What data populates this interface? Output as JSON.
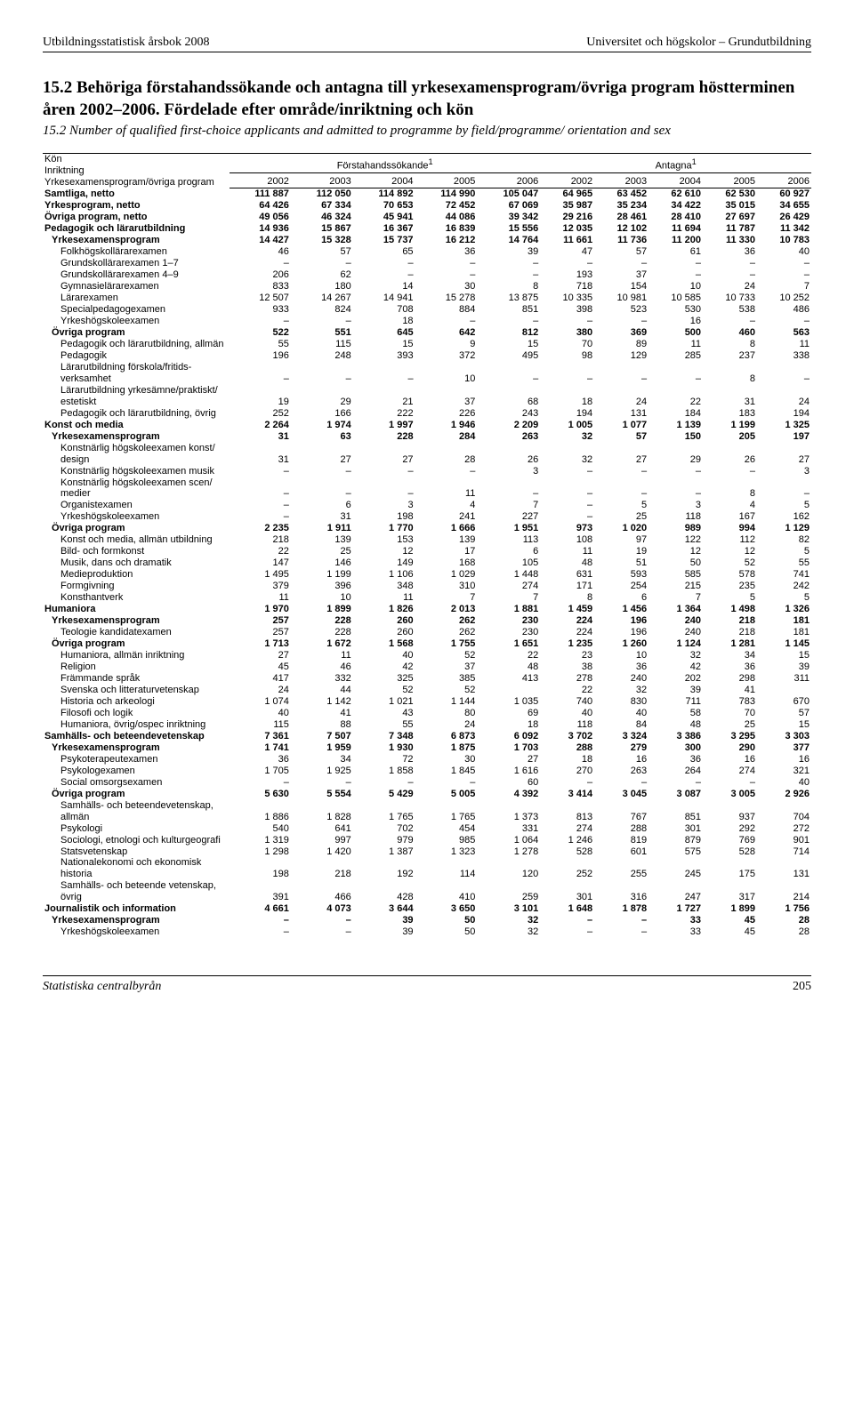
{
  "running_head": {
    "left": "Utbildningsstatistisk årsbok 2008",
    "right": "Universitet och högskolor – Grundutbildning"
  },
  "title": "15.2 Behöriga förstahandssökande och antagna till yrkesexamensprogram/övriga program höstterminen åren 2002–2006. Fördelade efter område/inriktning och kön",
  "subtitle": "15.2 Number of qualified first-choice applicants and admitted to programme by field/programme/ orientation and sex",
  "header": {
    "r1c1a": "Kön",
    "r1c1b": "Inriktning",
    "r1c1c": "Yrkesexamensprogram/övriga program",
    "group1": "Förstahandssökande",
    "group2": "Antagna",
    "sup": "1",
    "years": [
      "2002",
      "2003",
      "2004",
      "2005",
      "2006",
      "2002",
      "2003",
      "2004",
      "2005",
      "2006"
    ]
  },
  "rows": [
    {
      "cls": "bold section-gap",
      "label": "Samtliga, netto",
      "vals": [
        "111 887",
        "112 050",
        "114 892",
        "114 990",
        "105 047",
        "64 965",
        "63 452",
        "62 610",
        "62 530",
        "60 927"
      ]
    },
    {
      "cls": "bold section-gap",
      "label": "Yrkesprogram, netto",
      "vals": [
        "64 426",
        "67 334",
        "70 653",
        "72 452",
        "67 069",
        "35 987",
        "35 234",
        "34 422",
        "35 015",
        "34 655"
      ]
    },
    {
      "cls": "bold",
      "label": "Övriga program, netto",
      "vals": [
        "49 056",
        "46 324",
        "45 941",
        "44 086",
        "39 342",
        "29 216",
        "28 461",
        "28 410",
        "27 697",
        "26 429"
      ]
    },
    {
      "cls": "bold section-gap",
      "label": "Pedagogik och lärarutbildning",
      "vals": [
        "14 936",
        "15 867",
        "16 367",
        "16 839",
        "15 556",
        "12 035",
        "12 102",
        "11 694",
        "11 787",
        "11 342"
      ]
    },
    {
      "cls": "bold",
      "indent": 1,
      "label": "Yrkesexamensprogram",
      "vals": [
        "14 427",
        "15 328",
        "15 737",
        "16 212",
        "14 764",
        "11 661",
        "11 736",
        "11 200",
        "11 330",
        "10 783"
      ]
    },
    {
      "indent": 2,
      "label": "Folkhögskollärarexamen",
      "vals": [
        "46",
        "57",
        "65",
        "36",
        "39",
        "47",
        "57",
        "61",
        "36",
        "40"
      ]
    },
    {
      "indent": 2,
      "label": "Grundskollärarexamen 1–7",
      "vals": [
        "–",
        "–",
        "–",
        "–",
        "–",
        "–",
        "–",
        "–",
        "–",
        "–"
      ]
    },
    {
      "indent": 2,
      "label": "Grundskollärarexamen 4–9",
      "vals": [
        "206",
        "62",
        "–",
        "–",
        "–",
        "193",
        "37",
        "–",
        "–",
        "–"
      ]
    },
    {
      "indent": 2,
      "label": "Gymnasielärarexamen",
      "vals": [
        "833",
        "180",
        "14",
        "30",
        "8",
        "718",
        "154",
        "10",
        "24",
        "7"
      ]
    },
    {
      "indent": 2,
      "label": "Lärarexamen",
      "vals": [
        "12 507",
        "14 267",
        "14 941",
        "15 278",
        "13 875",
        "10 335",
        "10 981",
        "10 585",
        "10 733",
        "10 252"
      ]
    },
    {
      "indent": 2,
      "label": "Specialpedagogexamen",
      "vals": [
        "933",
        "824",
        "708",
        "884",
        "851",
        "398",
        "523",
        "530",
        "538",
        "486"
      ]
    },
    {
      "indent": 2,
      "label": "Yrkeshögskoleexamen",
      "vals": [
        "–",
        "–",
        "18",
        "–",
        "–",
        "–",
        "–",
        "16",
        "–",
        "–"
      ]
    },
    {
      "cls": "bold",
      "indent": 1,
      "label": "Övriga program",
      "vals": [
        "522",
        "551",
        "645",
        "642",
        "812",
        "380",
        "369",
        "500",
        "460",
        "563"
      ]
    },
    {
      "indent": 2,
      "label": "Pedagogik och lärarutbildning, allmän",
      "vals": [
        "55",
        "115",
        "15",
        "9",
        "15",
        "70",
        "89",
        "11",
        "8",
        "11"
      ]
    },
    {
      "indent": 2,
      "label": "Pedagogik",
      "vals": [
        "196",
        "248",
        "393",
        "372",
        "495",
        "98",
        "129",
        "285",
        "237",
        "338"
      ]
    },
    {
      "indent": 2,
      "label": "Lärarutbildning förskola/fritids-",
      "nobreak": true
    },
    {
      "indent": 2,
      "label": "verksamhet",
      "vals": [
        "–",
        "–",
        "–",
        "10",
        "–",
        "–",
        "–",
        "–",
        "8",
        "–"
      ]
    },
    {
      "indent": 2,
      "label": "Lärarutbildning yrkesämne/praktiskt/",
      "nobreak": true
    },
    {
      "indent": 2,
      "label": "estetiskt",
      "vals": [
        "19",
        "29",
        "21",
        "37",
        "68",
        "18",
        "24",
        "22",
        "31",
        "24"
      ]
    },
    {
      "indent": 2,
      "label": "Pedagogik och lärarutbildning, övrig",
      "vals": [
        "252",
        "166",
        "222",
        "226",
        "243",
        "194",
        "131",
        "184",
        "183",
        "194"
      ]
    },
    {
      "cls": "bold section-gap",
      "label": "Konst och media",
      "vals": [
        "2 264",
        "1 974",
        "1 997",
        "1 946",
        "2 209",
        "1 005",
        "1 077",
        "1 139",
        "1 199",
        "1 325"
      ]
    },
    {
      "cls": "bold",
      "indent": 1,
      "label": "Yrkesexamensprogram",
      "vals": [
        "31",
        "63",
        "228",
        "284",
        "263",
        "32",
        "57",
        "150",
        "205",
        "197"
      ]
    },
    {
      "indent": 2,
      "label": "Konstnärlig högskoleexamen konst/",
      "nobreak": true
    },
    {
      "indent": 2,
      "label": "design",
      "vals": [
        "31",
        "27",
        "27",
        "28",
        "26",
        "32",
        "27",
        "29",
        "26",
        "27"
      ]
    },
    {
      "indent": 2,
      "label": "Konstnärlig högskoleexamen musik",
      "vals": [
        "–",
        "–",
        "–",
        "–",
        "3",
        "–",
        "–",
        "–",
        "–",
        "3"
      ]
    },
    {
      "indent": 2,
      "label": "Konstnärlig högskoleexamen scen/",
      "nobreak": true
    },
    {
      "indent": 2,
      "label": "medier",
      "vals": [
        "–",
        "–",
        "–",
        "11",
        "–",
        "–",
        "–",
        "–",
        "8",
        "–"
      ]
    },
    {
      "indent": 2,
      "label": "Organistexamen",
      "vals": [
        "–",
        "6",
        "3",
        "4",
        "7",
        "–",
        "5",
        "3",
        "4",
        "5"
      ]
    },
    {
      "indent": 2,
      "label": "Yrkeshögskoleexamen",
      "vals": [
        "–",
        "31",
        "198",
        "241",
        "227",
        "–",
        "25",
        "118",
        "167",
        "162"
      ]
    },
    {
      "cls": "bold",
      "indent": 1,
      "label": "Övriga program",
      "vals": [
        "2 235",
        "1 911",
        "1 770",
        "1 666",
        "1 951",
        "973",
        "1 020",
        "989",
        "994",
        "1 129"
      ]
    },
    {
      "indent": 2,
      "label": "Konst och media, allmän utbildning",
      "vals": [
        "218",
        "139",
        "153",
        "139",
        "113",
        "108",
        "97",
        "122",
        "112",
        "82"
      ]
    },
    {
      "indent": 2,
      "label": "Bild- och formkonst",
      "vals": [
        "22",
        "25",
        "12",
        "17",
        "6",
        "11",
        "19",
        "12",
        "12",
        "5"
      ]
    },
    {
      "indent": 2,
      "label": "Musik, dans och dramatik",
      "vals": [
        "147",
        "146",
        "149",
        "168",
        "105",
        "48",
        "51",
        "50",
        "52",
        "55"
      ]
    },
    {
      "indent": 2,
      "label": "Medieproduktion",
      "vals": [
        "1 495",
        "1 199",
        "1 106",
        "1 029",
        "1 448",
        "631",
        "593",
        "585",
        "578",
        "741"
      ]
    },
    {
      "indent": 2,
      "label": "Formgivning",
      "vals": [
        "379",
        "396",
        "348",
        "310",
        "274",
        "171",
        "254",
        "215",
        "235",
        "242"
      ]
    },
    {
      "indent": 2,
      "label": "Konsthantverk",
      "vals": [
        "11",
        "10",
        "11",
        "7",
        "7",
        "8",
        "6",
        "7",
        "5",
        "5"
      ]
    },
    {
      "cls": "bold section-gap",
      "label": "Humaniora",
      "vals": [
        "1 970",
        "1 899",
        "1 826",
        "2 013",
        "1 881",
        "1 459",
        "1 456",
        "1 364",
        "1 498",
        "1 326"
      ]
    },
    {
      "cls": "bold",
      "indent": 1,
      "label": "Yrkesexamensprogram",
      "vals": [
        "257",
        "228",
        "260",
        "262",
        "230",
        "224",
        "196",
        "240",
        "218",
        "181"
      ]
    },
    {
      "indent": 2,
      "label": "Teologie kandidatexamen",
      "vals": [
        "257",
        "228",
        "260",
        "262",
        "230",
        "224",
        "196",
        "240",
        "218",
        "181"
      ]
    },
    {
      "cls": "bold",
      "indent": 1,
      "label": "Övriga program",
      "vals": [
        "1 713",
        "1 672",
        "1 568",
        "1 755",
        "1 651",
        "1 235",
        "1 260",
        "1 124",
        "1 281",
        "1 145"
      ]
    },
    {
      "indent": 2,
      "label": "Humaniora, allmän inriktning",
      "vals": [
        "27",
        "11",
        "40",
        "52",
        "22",
        "23",
        "10",
        "32",
        "34",
        "15"
      ]
    },
    {
      "indent": 2,
      "label": "Religion",
      "vals": [
        "45",
        "46",
        "42",
        "37",
        "48",
        "38",
        "36",
        "42",
        "36",
        "39"
      ]
    },
    {
      "indent": 2,
      "label": "Främmande språk",
      "vals": [
        "417",
        "332",
        "325",
        "385",
        "413",
        "278",
        "240",
        "202",
        "298",
        "311"
      ]
    },
    {
      "indent": 2,
      "label": "Svenska och litteraturvetenskap",
      "vals": [
        "24",
        "44",
        "52",
        "52",
        "",
        "22",
        "32",
        "39",
        "41",
        ""
      ]
    },
    {
      "indent": 2,
      "label": "Historia och arkeologi",
      "vals": [
        "1 074",
        "1 142",
        "1 021",
        "1 144",
        "1 035",
        "740",
        "830",
        "711",
        "783",
        "670"
      ]
    },
    {
      "indent": 2,
      "label": "Filosofi och logik",
      "vals": [
        "40",
        "41",
        "43",
        "80",
        "69",
        "40",
        "40",
        "58",
        "70",
        "57"
      ]
    },
    {
      "indent": 2,
      "label": "Humaniora, övrig/ospec inriktning",
      "vals": [
        "115",
        "88",
        "55",
        "24",
        "18",
        "118",
        "84",
        "48",
        "25",
        "15"
      ]
    },
    {
      "cls": "bold section-gap",
      "label": "Samhälls- och beteendevetenskap",
      "vals": [
        "7 361",
        "7 507",
        "7 348",
        "6 873",
        "6 092",
        "3 702",
        "3 324",
        "3 386",
        "3 295",
        "3 303"
      ]
    },
    {
      "cls": "bold",
      "indent": 1,
      "label": "Yrkesexamensprogram",
      "vals": [
        "1 741",
        "1 959",
        "1 930",
        "1 875",
        "1 703",
        "288",
        "279",
        "300",
        "290",
        "377"
      ]
    },
    {
      "indent": 2,
      "label": "Psykoterapeutexamen",
      "vals": [
        "36",
        "34",
        "72",
        "30",
        "27",
        "18",
        "16",
        "36",
        "16",
        "16"
      ]
    },
    {
      "indent": 2,
      "label": "Psykologexamen",
      "vals": [
        "1 705",
        "1 925",
        "1 858",
        "1 845",
        "1 616",
        "270",
        "263",
        "264",
        "274",
        "321"
      ]
    },
    {
      "indent": 2,
      "label": "Social omsorgsexamen",
      "vals": [
        "–",
        "–",
        "–",
        "–",
        "60",
        "–",
        "–",
        "–",
        "–",
        "40"
      ]
    },
    {
      "cls": "bold",
      "indent": 1,
      "label": "Övriga program",
      "vals": [
        "5 630",
        "5 554",
        "5 429",
        "5 005",
        "4 392",
        "3 414",
        "3 045",
        "3 087",
        "3 005",
        "2 926"
      ]
    },
    {
      "indent": 2,
      "label": "Samhälls- och beteendevetenskap,",
      "nobreak": true
    },
    {
      "indent": 2,
      "label": "allmän",
      "vals": [
        "1 886",
        "1 828",
        "1 765",
        "1 765",
        "1 373",
        "813",
        "767",
        "851",
        "937",
        "704"
      ]
    },
    {
      "indent": 2,
      "label": "Psykologi",
      "vals": [
        "540",
        "641",
        "702",
        "454",
        "331",
        "274",
        "288",
        "301",
        "292",
        "272"
      ]
    },
    {
      "indent": 2,
      "label": "Sociologi, etnologi och kulturgeografi",
      "vals": [
        "1 319",
        "997",
        "979",
        "985",
        "1 064",
        "1 246",
        "819",
        "879",
        "769",
        "901"
      ]
    },
    {
      "indent": 2,
      "label": "Statsvetenskap",
      "vals": [
        "1 298",
        "1 420",
        "1 387",
        "1 323",
        "1 278",
        "528",
        "601",
        "575",
        "528",
        "714"
      ]
    },
    {
      "indent": 2,
      "label": "Nationalekonomi och ekonomisk",
      "nobreak": true
    },
    {
      "indent": 2,
      "label": "historia",
      "vals": [
        "198",
        "218",
        "192",
        "114",
        "120",
        "252",
        "255",
        "245",
        "175",
        "131"
      ]
    },
    {
      "indent": 2,
      "label": "Samhälls- och beteende vetenskap,",
      "nobreak": true
    },
    {
      "indent": 2,
      "label": "övrig",
      "vals": [
        "391",
        "466",
        "428",
        "410",
        "259",
        "301",
        "316",
        "247",
        "317",
        "214"
      ]
    },
    {
      "cls": "bold section-gap",
      "label": "Journalistik och information",
      "vals": [
        "4 661",
        "4 073",
        "3 644",
        "3 650",
        "3 101",
        "1 648",
        "1 878",
        "1 727",
        "1 899",
        "1 756"
      ]
    },
    {
      "cls": "bold",
      "indent": 1,
      "label": "Yrkesexamensprogram",
      "vals": [
        "–",
        "–",
        "39",
        "50",
        "32",
        "–",
        "–",
        "33",
        "45",
        "28"
      ]
    },
    {
      "indent": 2,
      "label": "Yrkeshögskoleexamen",
      "vals": [
        "–",
        "–",
        "39",
        "50",
        "32",
        "–",
        "–",
        "33",
        "45",
        "28"
      ]
    }
  ],
  "footer": {
    "left": "Statistiska centralbyrån",
    "page": "205"
  }
}
